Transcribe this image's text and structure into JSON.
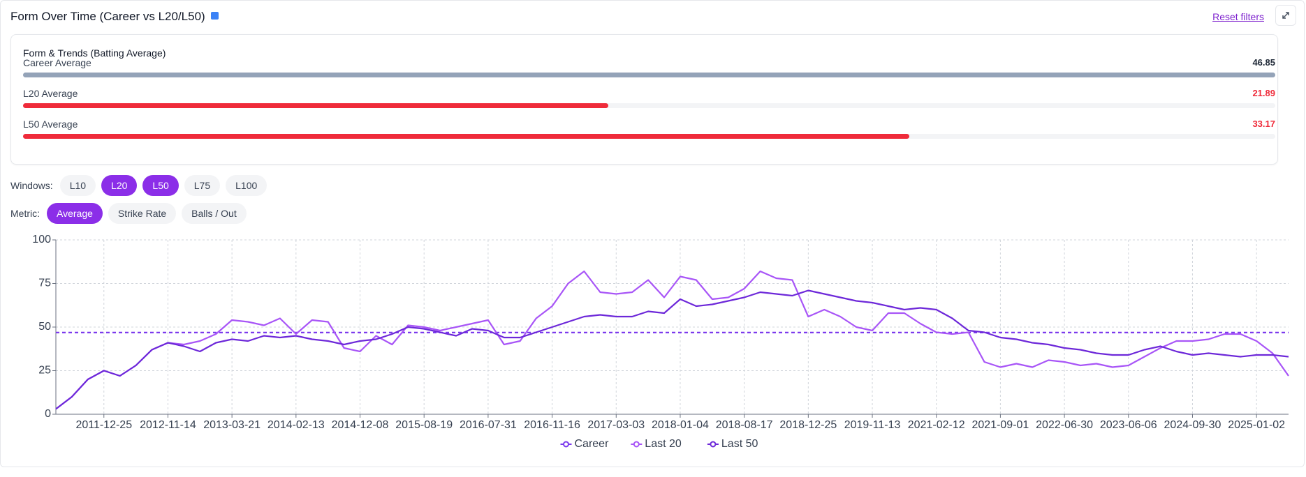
{
  "header": {
    "title": "Form Over Time (Career vs L20/L50)",
    "reset": "Reset filters"
  },
  "summary": {
    "title": "Form & Trends (Batting Average)",
    "rows": [
      {
        "label": "Career Average",
        "value": 46.85,
        "color": "#94a3b8",
        "text_color": "#1f2937"
      },
      {
        "label": "L20 Average",
        "value": 21.89,
        "color": "#ef2b3a",
        "text_color": "#ef2b3a"
      },
      {
        "label": "L50 Average",
        "value": 33.17,
        "color": "#ef2b3a",
        "text_color": "#ef2b3a"
      }
    ]
  },
  "windows": {
    "label": "Windows:",
    "options": [
      {
        "label": "L10",
        "active": false
      },
      {
        "label": "L20",
        "active": true
      },
      {
        "label": "L50",
        "active": true
      },
      {
        "label": "L75",
        "active": false
      },
      {
        "label": "L100",
        "active": false
      }
    ]
  },
  "metric": {
    "label": "Metric:",
    "options": [
      {
        "label": "Average",
        "active": true
      },
      {
        "label": "Strike Rate",
        "active": false
      },
      {
        "label": "Balls / Out",
        "active": false
      }
    ]
  },
  "chart_data": {
    "type": "line",
    "categories": [
      null,
      null,
      null,
      "2011-12-25",
      null,
      null,
      null,
      "2012-11-14",
      null,
      null,
      null,
      "2013-03-21",
      null,
      null,
      null,
      "2014-02-13",
      null,
      null,
      null,
      "2014-12-08",
      null,
      null,
      null,
      "2015-08-19",
      null,
      null,
      null,
      "2016-07-31",
      null,
      null,
      null,
      "2016-11-16",
      null,
      null,
      null,
      "2017-03-03",
      null,
      null,
      null,
      "2018-01-04",
      null,
      null,
      null,
      "2018-08-17",
      null,
      null,
      null,
      "2018-12-25",
      null,
      null,
      null,
      "2019-11-13",
      null,
      null,
      null,
      "2021-02-12",
      null,
      null,
      null,
      "2021-09-01",
      null,
      null,
      null,
      "2022-06-30",
      null,
      null,
      null,
      "2023-06-06",
      null,
      null,
      null,
      "2024-09-30",
      null,
      null,
      null,
      "2025-01-02",
      null,
      null
    ],
    "series": [
      {
        "name": "Career",
        "color": "#7c3aed",
        "dashed": true,
        "values": [
          46.85,
          46.85,
          46.85,
          46.85,
          46.85,
          46.85,
          46.85,
          46.85,
          46.85,
          46.85,
          46.85,
          46.85,
          46.85,
          46.85,
          46.85,
          46.85,
          46.85,
          46.85,
          46.85,
          46.85,
          46.85,
          46.85,
          46.85,
          46.85,
          46.85,
          46.85,
          46.85,
          46.85,
          46.85,
          46.85,
          46.85,
          46.85,
          46.85,
          46.85,
          46.85,
          46.85,
          46.85,
          46.85,
          46.85,
          46.85,
          46.85,
          46.85,
          46.85,
          46.85,
          46.85,
          46.85,
          46.85,
          46.85,
          46.85,
          46.85,
          46.85,
          46.85,
          46.85,
          46.85,
          46.85,
          46.85,
          46.85,
          46.85,
          46.85,
          46.85,
          46.85,
          46.85,
          46.85,
          46.85,
          46.85,
          46.85,
          46.85,
          46.85,
          46.85,
          46.85,
          46.85,
          46.85,
          46.85,
          46.85,
          46.85,
          46.85,
          46.85,
          46.85
        ]
      },
      {
        "name": "Last 20",
        "color": "#a855f7",
        "dashed": false,
        "values": [
          3,
          10,
          20,
          25,
          22,
          28,
          37,
          41,
          40,
          42,
          46,
          54,
          53,
          51,
          55,
          46,
          54,
          53,
          38,
          36,
          45,
          40,
          51,
          50,
          48,
          50,
          52,
          54,
          40,
          42,
          55,
          62,
          75,
          82,
          70,
          69,
          70,
          77,
          67,
          79,
          77,
          66,
          67,
          72,
          82,
          78,
          77,
          56,
          60,
          56,
          50,
          48,
          58,
          58,
          52,
          47,
          46,
          47,
          30,
          27,
          29,
          27,
          31,
          30,
          28,
          29,
          27,
          28,
          33,
          38,
          42,
          42,
          43,
          46,
          46,
          42,
          35,
          22
        ]
      },
      {
        "name": "Last 50",
        "color": "#6d28d9",
        "dashed": false,
        "values": [
          3,
          10,
          20,
          25,
          22,
          28,
          37,
          41,
          39,
          36,
          41,
          43,
          42,
          45,
          44,
          45,
          43,
          42,
          40,
          42,
          43,
          46,
          50,
          49,
          47,
          45,
          49,
          48,
          44,
          44,
          47,
          50,
          53,
          56,
          57,
          56,
          56,
          59,
          58,
          66,
          62,
          63,
          65,
          67,
          70,
          69,
          68,
          71,
          69,
          67,
          65,
          64,
          62,
          60,
          61,
          60,
          55,
          48,
          47,
          44,
          43,
          41,
          40,
          38,
          37,
          35,
          34,
          34,
          37,
          39,
          36,
          34,
          35,
          34,
          33,
          34,
          34,
          33
        ]
      }
    ],
    "ylim": [
      0,
      100
    ],
    "yticks": [
      0,
      25,
      50,
      75,
      100
    ],
    "grid": true
  }
}
